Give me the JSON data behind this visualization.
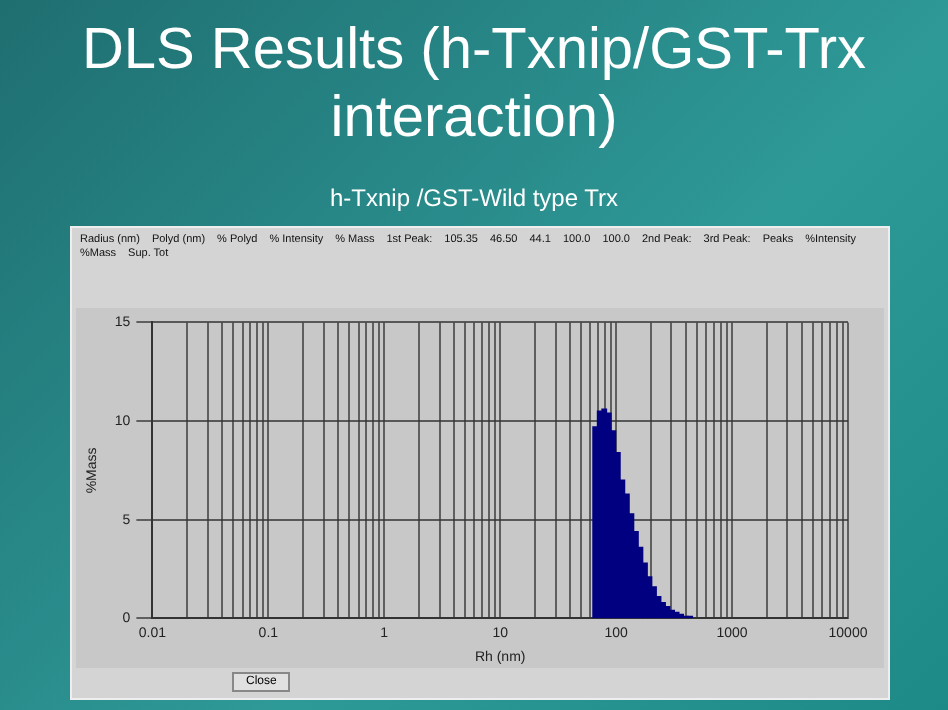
{
  "chart_data": {
    "type": "histogram",
    "title": "DLS Results (h-Txnip/GST-Trx interaction)",
    "subtitle": "h-Txnip /GST-Wild type Trx",
    "xlabel": "Rh (nm)",
    "ylabel": "%Mass",
    "color": "#000080",
    "bins": [
      63.1,
      69.0,
      75.5,
      82.6,
      90.4,
      98.9,
      108.2,
      118.3,
      129.5,
      141.6,
      154.9,
      169.5,
      185.4,
      202.8,
      221.9,
      242.7,
      265.5,
      290.5,
      317.8,
      347.6,
      380.3,
      416.0,
      455.1
    ],
    "values": [
      9.7,
      10.5,
      10.6,
      10.4,
      9.5,
      8.4,
      7.0,
      6.3,
      5.3,
      4.4,
      3.6,
      2.8,
      2.1,
      1.6,
      1.1,
      0.8,
      0.6,
      0.4,
      0.3,
      0.2,
      0.1,
      0.1
    ],
    "log": "x",
    "xlim": [
      0.01,
      10000
    ],
    "ylim": [
      0,
      15
    ],
    "yticks": [
      0,
      5,
      10,
      15
    ],
    "xticks": [
      0.01,
      {
        "value": 0.02,
        "label": null
      },
      {
        "value": 0.03,
        "label": null
      },
      {
        "value": 0.04,
        "label": null
      },
      {
        "value": 0.05,
        "label": null
      },
      {
        "value": 0.06,
        "label": null
      },
      {
        "value": 0.07,
        "label": null
      },
      {
        "value": 0.08,
        "label": null
      },
      {
        "value": 0.09,
        "label": null
      },
      0.1,
      {
        "value": 0.2,
        "label": null
      },
      {
        "value": 0.3,
        "label": null
      },
      {
        "value": 0.4,
        "label": null
      },
      {
        "value": 0.5,
        "label": null
      },
      {
        "value": 0.6,
        "label": null
      },
      {
        "value": 0.7,
        "label": null
      },
      {
        "value": 0.8,
        "label": null
      },
      {
        "value": 0.9,
        "label": null
      },
      1,
      {
        "value": 2,
        "label": null
      },
      {
        "value": 3,
        "label": null
      },
      {
        "value": 4,
        "label": null
      },
      {
        "value": 5,
        "label": null
      },
      {
        "value": 6,
        "label": null
      },
      {
        "value": 7,
        "label": null
      },
      {
        "value": 8,
        "label": null
      },
      {
        "value": 9,
        "label": null
      },
      10,
      {
        "value": 20,
        "label": null
      },
      {
        "value": 30,
        "label": null
      },
      {
        "value": 40,
        "label": null
      },
      {
        "value": 50,
        "label": null
      },
      {
        "value": 60,
        "label": null
      },
      {
        "value": 70,
        "label": null
      },
      {
        "value": 80,
        "label": null
      },
      {
        "value": 90,
        "label": null
      },
      100,
      {
        "value": 200,
        "label": null
      },
      {
        "value": 300,
        "label": null
      },
      {
        "value": 400,
        "label": null
      },
      {
        "value": 500,
        "label": null
      },
      {
        "value": 600,
        "label": null
      },
      {
        "value": 700,
        "label": null
      },
      {
        "value": 800,
        "label": null
      },
      {
        "value": 900,
        "label": null
      },
      1000,
      {
        "value": 2000,
        "label": null
      },
      {
        "value": 3000,
        "label": null
      },
      {
        "value": 4000,
        "label": null
      },
      {
        "value": 5000,
        "label": null
      },
      {
        "value": 6000,
        "label": null
      },
      {
        "value": 7000,
        "label": null
      },
      {
        "value": 8000,
        "label": null
      },
      {
        "value": 9000,
        "label": null
      },
      10000
    ],
    "grid": true,
    "legend": false,
    "annotations": [
      "Radius (nm)",
      "Polyd (nm)",
      "% Polyd",
      "% Intensity",
      "% Mass",
      "1st Peak:",
      "105.35",
      "46.50",
      "44.1",
      "100.0",
      "100.0",
      "2nd Peak:",
      "3rd Peak:",
      "Peaks",
      "%Intensity",
      "%Mass",
      "Sup. Tot",
      "Close"
    ]
  }
}
